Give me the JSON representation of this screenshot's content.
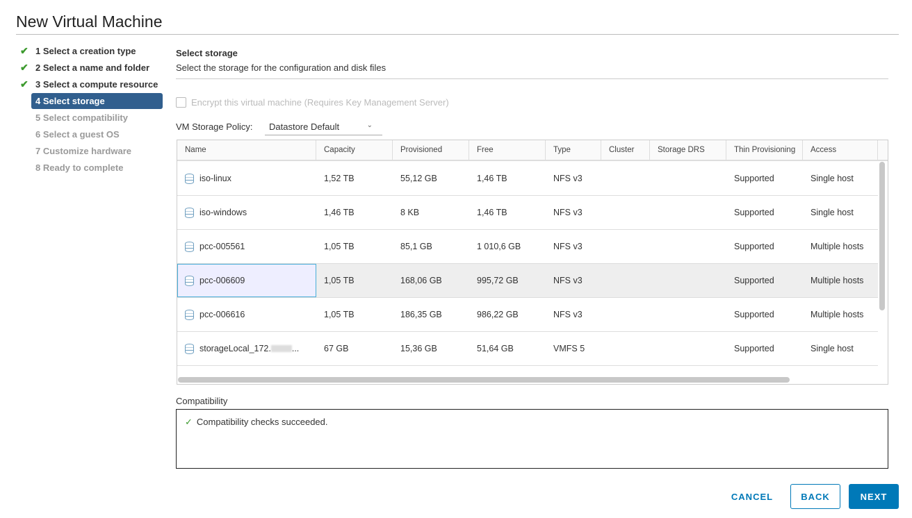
{
  "title": "New Virtual Machine",
  "steps": [
    {
      "label": "1 Select a creation type",
      "state": "done"
    },
    {
      "label": "2 Select a name and folder",
      "state": "done"
    },
    {
      "label": "3 Select a compute resource",
      "state": "done"
    },
    {
      "label": "4 Select storage",
      "state": "current"
    },
    {
      "label": "5 Select compatibility",
      "state": "todo"
    },
    {
      "label": "6 Select a guest OS",
      "state": "todo"
    },
    {
      "label": "7 Customize hardware",
      "state": "todo"
    },
    {
      "label": "8 Ready to complete",
      "state": "todo"
    }
  ],
  "section": {
    "title": "Select storage",
    "subtitle": "Select the storage for the configuration and disk files"
  },
  "encrypt_label": "Encrypt this virtual machine (Requires Key Management Server)",
  "policy": {
    "label": "VM Storage Policy:",
    "value": "Datastore Default"
  },
  "columns": [
    "Name",
    "Capacity",
    "Provisioned",
    "Free",
    "Type",
    "Cluster",
    "Storage DRS",
    "Thin Provisioning",
    "Access"
  ],
  "rows": [
    [
      "iso-linux",
      "1,52 TB",
      "55,12 GB",
      "1,46 TB",
      "NFS v3",
      "",
      "",
      "Supported",
      "Single host"
    ],
    [
      "iso-windows",
      "1,46 TB",
      "8 KB",
      "1,46 TB",
      "NFS v3",
      "",
      "",
      "Supported",
      "Single host"
    ],
    [
      "pcc-005561",
      "1,05 TB",
      "85,1 GB",
      "1 010,6 GB",
      "NFS v3",
      "",
      "",
      "Supported",
      "Multiple hosts"
    ],
    [
      "pcc-006609",
      "1,05 TB",
      "168,06 GB",
      "995,72 GB",
      "NFS v3",
      "",
      "",
      "Supported",
      "Multiple hosts"
    ],
    [
      "pcc-006616",
      "1,05 TB",
      "186,35 GB",
      "986,22 GB",
      "NFS v3",
      "",
      "",
      "Supported",
      "Multiple hosts"
    ],
    [
      "storageLocal_172.",
      "67 GB",
      "15,36 GB",
      "51,64 GB",
      "VMFS 5",
      "",
      "",
      "Supported",
      "Single host"
    ]
  ],
  "selected_row": 3,
  "compatibility": {
    "label": "Compatibility",
    "message": "Compatibility checks succeeded."
  },
  "buttons": {
    "cancel": "CANCEL",
    "back": "BACK",
    "next": "NEXT"
  }
}
